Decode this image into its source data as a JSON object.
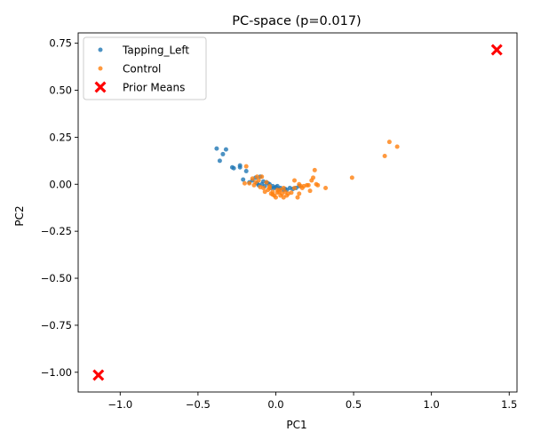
{
  "chart_data": {
    "type": "scatter",
    "title": "PC-space (p=0.017)",
    "xlabel": "PC1",
    "ylabel": "PC2",
    "xlim": [
      -1.27,
      1.55
    ],
    "ylim": [
      -1.105,
      0.805
    ],
    "xticks": [
      -1.0,
      -0.5,
      0.0,
      0.5,
      1.0,
      1.5
    ],
    "xtick_labels": [
      "−1.0",
      "−0.5",
      "0.0",
      "0.5",
      "1.0",
      "1.5"
    ],
    "yticks": [
      -1.0,
      -0.75,
      -0.5,
      -0.25,
      0.0,
      0.25,
      0.5,
      0.75
    ],
    "ytick_labels": [
      "−1.00",
      "−0.75",
      "−0.50",
      "−0.25",
      "0.00",
      "0.25",
      "0.50",
      "0.75"
    ],
    "grid": false,
    "legend_position": "upper-left",
    "series": [
      {
        "name": "Tapping_Left",
        "color": "#1f77b4",
        "marker": "dot",
        "x": [
          -0.38,
          -0.32,
          -0.34,
          -0.36,
          -0.28,
          -0.27,
          -0.23,
          -0.23,
          -0.19,
          -0.21,
          -0.17,
          -0.15,
          -0.13,
          -0.12,
          -0.1,
          -0.09,
          -0.07,
          -0.06,
          -0.04,
          -0.03,
          -0.02,
          -0.01,
          0.0,
          0.01,
          0.02,
          0.03,
          0.05,
          0.06,
          0.07,
          0.09,
          0.11,
          0.13,
          0.15,
          -0.11,
          -0.08,
          -0.05
        ],
        "y": [
          0.19,
          0.185,
          0.16,
          0.125,
          0.09,
          0.085,
          0.1,
          0.09,
          0.07,
          0.025,
          0.01,
          0.02,
          0.035,
          0.005,
          0.04,
          0.0,
          -0.01,
          0.01,
          0.0,
          -0.02,
          -0.01,
          -0.02,
          -0.015,
          -0.01,
          -0.025,
          -0.02,
          -0.03,
          -0.025,
          -0.03,
          -0.02,
          -0.025,
          -0.02,
          -0.01,
          -0.005,
          0.015,
          0.005
        ]
      },
      {
        "name": "Control",
        "color": "#ff7f0e",
        "marker": "dot",
        "x": [
          -0.19,
          -0.17,
          -0.15,
          -0.13,
          -0.12,
          -0.1,
          -0.09,
          -0.08,
          -0.06,
          -0.05,
          -0.04,
          -0.03,
          -0.02,
          -0.01,
          0.0,
          0.01,
          0.02,
          0.03,
          0.04,
          0.05,
          0.06,
          0.07,
          0.08,
          0.1,
          0.12,
          0.14,
          0.15,
          0.16,
          0.18,
          0.2,
          0.22,
          0.23,
          0.24,
          0.25,
          0.27,
          0.32,
          0.49,
          0.7,
          0.73,
          0.78,
          -0.2,
          -0.14,
          -0.11,
          -0.07,
          -0.04,
          -0.02,
          0.01,
          0.03,
          0.05,
          0.12,
          0.15,
          0.17,
          0.21,
          0.26
        ],
        "y": [
          0.095,
          0.005,
          0.03,
          0.01,
          0.04,
          -0.015,
          0.04,
          -0.02,
          0.01,
          -0.03,
          -0.01,
          -0.05,
          -0.04,
          -0.06,
          -0.07,
          -0.03,
          -0.04,
          -0.06,
          -0.05,
          -0.07,
          -0.04,
          -0.06,
          -0.05,
          -0.045,
          0.02,
          -0.07,
          -0.05,
          -0.01,
          -0.01,
          -0.005,
          -0.035,
          0.02,
          0.035,
          0.075,
          -0.005,
          -0.02,
          0.035,
          0.15,
          0.225,
          0.2,
          0.005,
          -0.005,
          0.02,
          -0.04,
          -0.02,
          -0.055,
          -0.045,
          -0.03,
          -0.02,
          -0.02,
          0.0,
          -0.02,
          -0.005,
          0.0
        ]
      },
      {
        "name": "Prior Means",
        "color": "#ff0000",
        "marker": "X",
        "x": [
          -1.14,
          1.42
        ],
        "y": [
          -1.015,
          0.715
        ]
      }
    ]
  }
}
